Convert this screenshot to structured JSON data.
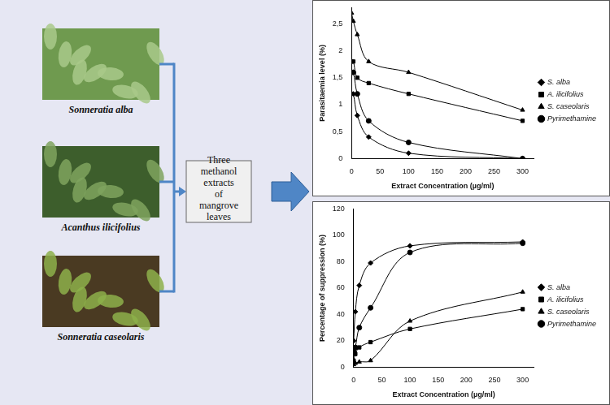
{
  "diagram": {
    "plants": [
      "Sonneratia alba",
      "Acanthus ilicifolius",
      "Sonneratia caseolaris"
    ],
    "box": "Three methanol extracts of mangrove leaves"
  },
  "chart_data": [
    {
      "type": "line",
      "y_label": "Parasitaemia level (%)",
      "x_label": "Extract Concentration (µg/ml)",
      "series": [
        {
          "name": "S. alba",
          "color": "#000000",
          "marker": "diamond",
          "x": [
            0,
            3,
            10,
            30,
            100,
            300
          ],
          "values": [
            1.2,
            1.2,
            0.8,
            0.4,
            0.1,
            0
          ]
        },
        {
          "name": "A. ilicifolius",
          "color": "#000000",
          "marker": "square",
          "x": [
            0,
            3,
            10,
            30,
            100,
            300
          ],
          "values": [
            1.8,
            1.8,
            1.5,
            1.4,
            1.2,
            0.7
          ]
        },
        {
          "name": "S. caseolaris",
          "color": "#000000",
          "marker": "triangle",
          "x": [
            0,
            3,
            10,
            30,
            100,
            300
          ],
          "values": [
            2.7,
            2.55,
            2.3,
            1.8,
            1.6,
            0.9
          ]
        },
        {
          "name": "Pyrimethamine",
          "color": "#000000",
          "marker": "circle",
          "x": [
            0,
            3,
            10,
            30,
            100,
            300
          ],
          "values": [
            1.6,
            1.6,
            1.2,
            0.7,
            0.3,
            0
          ]
        }
      ],
      "xlim": [
        0,
        320
      ],
      "xticks": [
        0,
        50,
        100,
        150,
        200,
        250,
        300
      ],
      "ylim": [
        0,
        2.8
      ],
      "yticks": [
        0,
        {
          "value": 0.5,
          "label": "0,5"
        },
        1,
        {
          "value": 1.5,
          "label": "1,5"
        },
        2,
        {
          "value": 2.5,
          "label": "2,5"
        }
      ],
      "grid": false,
      "legend": "right"
    },
    {
      "type": "line",
      "y_label": "Percentage of suppression (%)",
      "x_label": "Extract Concentration (µg/ml)",
      "series": [
        {
          "name": "S. alba",
          "color": "#000000",
          "marker": "diamond",
          "x": [
            0,
            3,
            10,
            30,
            100,
            300
          ],
          "values": [
            20,
            42,
            62,
            79,
            92,
            95
          ]
        },
        {
          "name": "A. ilicifolius",
          "color": "#000000",
          "marker": "square",
          "x": [
            0,
            3,
            10,
            30,
            100,
            300
          ],
          "values": [
            5,
            10,
            15,
            19,
            29,
            44
          ]
        },
        {
          "name": "S. caseolaris",
          "color": "#000000",
          "marker": "triangle",
          "x": [
            0,
            3,
            10,
            30,
            100,
            300
          ],
          "values": [
            2,
            3,
            4,
            5,
            35,
            57
          ]
        },
        {
          "name": "Pyrimethamine",
          "color": "#000000",
          "marker": "circle",
          "x": [
            0,
            3,
            10,
            30,
            100,
            300
          ],
          "values": [
            12,
            15,
            30,
            45,
            87,
            94
          ]
        }
      ],
      "xlim": [
        0,
        320
      ],
      "xticks": [
        0,
        50,
        100,
        150,
        200,
        250,
        300
      ],
      "ylim": [
        0,
        120
      ],
      "yticks": [
        0,
        20,
        40,
        60,
        80,
        100,
        120
      ],
      "grid": false,
      "legend": "right"
    }
  ]
}
